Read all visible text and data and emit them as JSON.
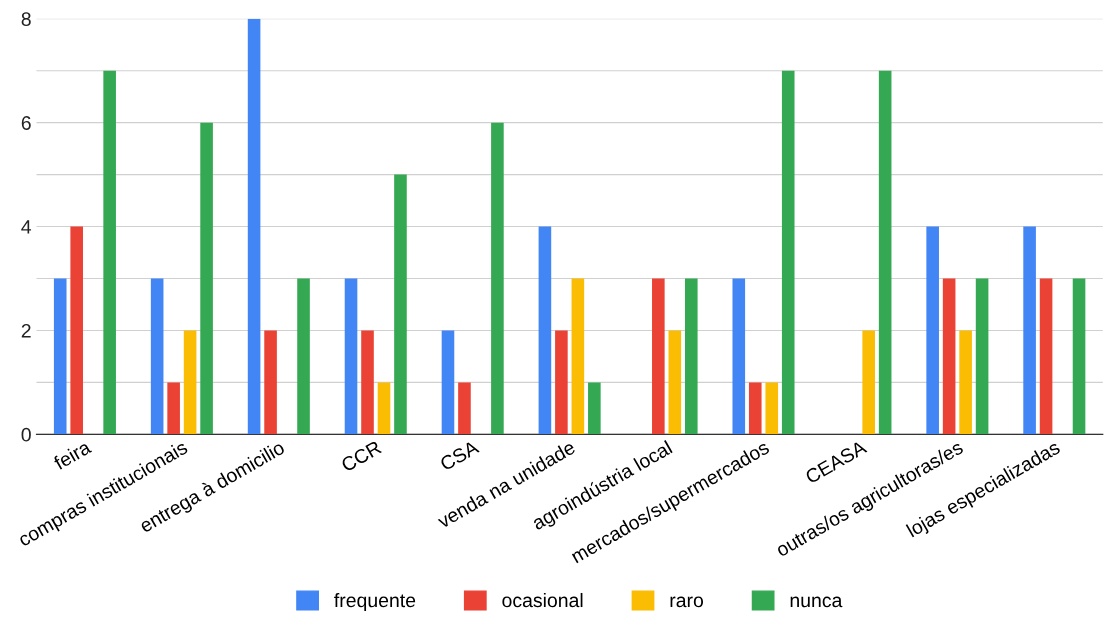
{
  "chart_data": {
    "type": "bar",
    "categories": [
      "feira",
      "compras institucionais",
      "entrega à domicilio",
      "CCR",
      "CSA",
      "venda na unidade",
      "agroindústria local",
      "mercados/supermercados",
      "CEASA",
      "outras/os agricultoras/es",
      "lojas especializadas"
    ],
    "series": [
      {
        "name": "frequente",
        "color": "#4285f4",
        "values": [
          3,
          3,
          8,
          3,
          2,
          4,
          0,
          3,
          0,
          4,
          4
        ]
      },
      {
        "name": "ocasional",
        "color": "#ea4335",
        "values": [
          4,
          1,
          2,
          2,
          1,
          2,
          3,
          1,
          0,
          3,
          3
        ]
      },
      {
        "name": "raro",
        "color": "#fbbc04",
        "values": [
          0,
          2,
          0,
          1,
          0,
          3,
          2,
          1,
          2,
          2,
          0
        ]
      },
      {
        "name": "nunca",
        "color": "#34a853",
        "values": [
          7,
          6,
          3,
          5,
          6,
          1,
          3,
          7,
          7,
          3,
          3
        ]
      }
    ],
    "ylim": [
      0,
      8
    ],
    "yticks": [
      0,
      {
        "value": 1,
        "label": null
      },
      2,
      {
        "value": 3,
        "label": null
      },
      4,
      {
        "value": 5,
        "label": null
      },
      6,
      {
        "value": 7,
        "label": null
      },
      8
    ],
    "grid": "y",
    "legend": "bottom"
  }
}
